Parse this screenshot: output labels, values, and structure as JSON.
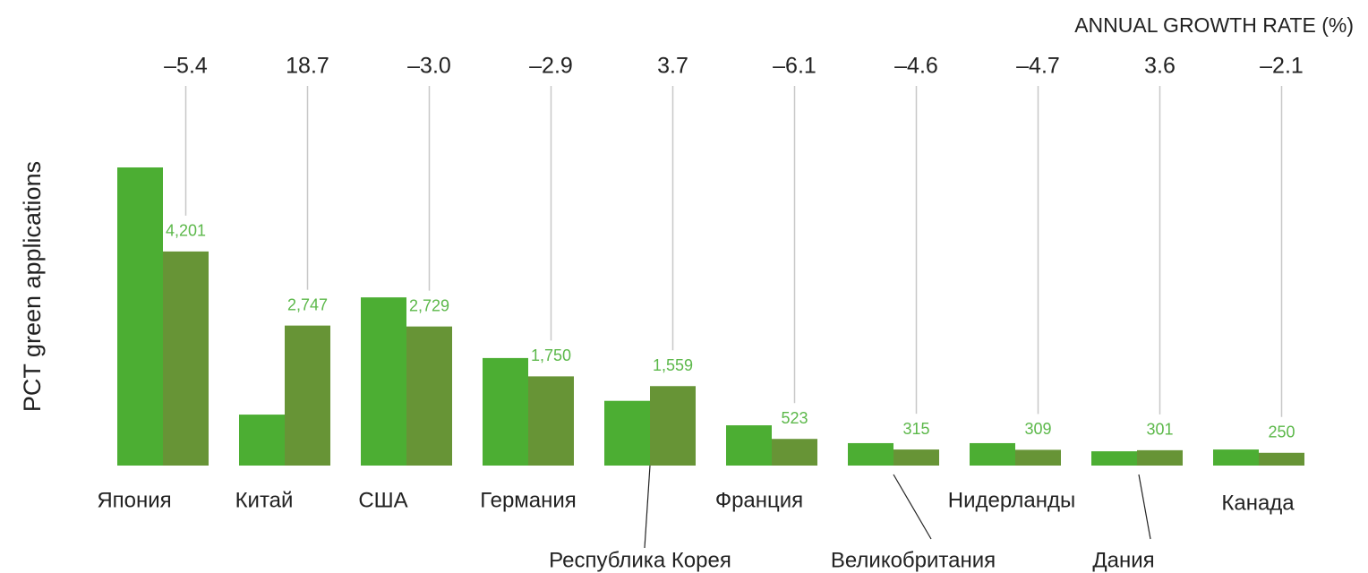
{
  "chart_data": {
    "type": "bar",
    "y_label": "PCT green applications",
    "categories": [
      "Япония",
      "Китай",
      "США",
      "Германия",
      "Республика Корея",
      "Франция",
      "Великобритания",
      "Нидерланды",
      "Дания",
      "Канада"
    ],
    "series": [
      {
        "color": "#4cae33",
        "values": [
          5850,
          1000,
          3300,
          2110,
          1270,
          790,
          440,
          440,
          280,
          315
        ]
      },
      {
        "color": "#679436",
        "values": [
          4201,
          2747,
          2729,
          1750,
          1559,
          523,
          315,
          309,
          301,
          250
        ],
        "value_labels": [
          "4,201",
          "2,747",
          "2,729",
          "1,750",
          "1,559",
          "523",
          "315",
          "309",
          "301",
          "250"
        ],
        "label_color": "#5cb84a"
      }
    ],
    "growth": {
      "title": "ANNUAL GROWTH RATE (%)",
      "values": [
        -5.4,
        18.7,
        -3.0,
        -2.9,
        3.7,
        -6.1,
        -4.6,
        -4.7,
        3.6,
        -2.1
      ],
      "value_labels": [
        "–5.4",
        "18.7",
        "–3.0",
        "–2.9",
        "3.7",
        "–6.1",
        "–4.6",
        "–4.7",
        "3.6",
        "–2.1"
      ]
    }
  }
}
